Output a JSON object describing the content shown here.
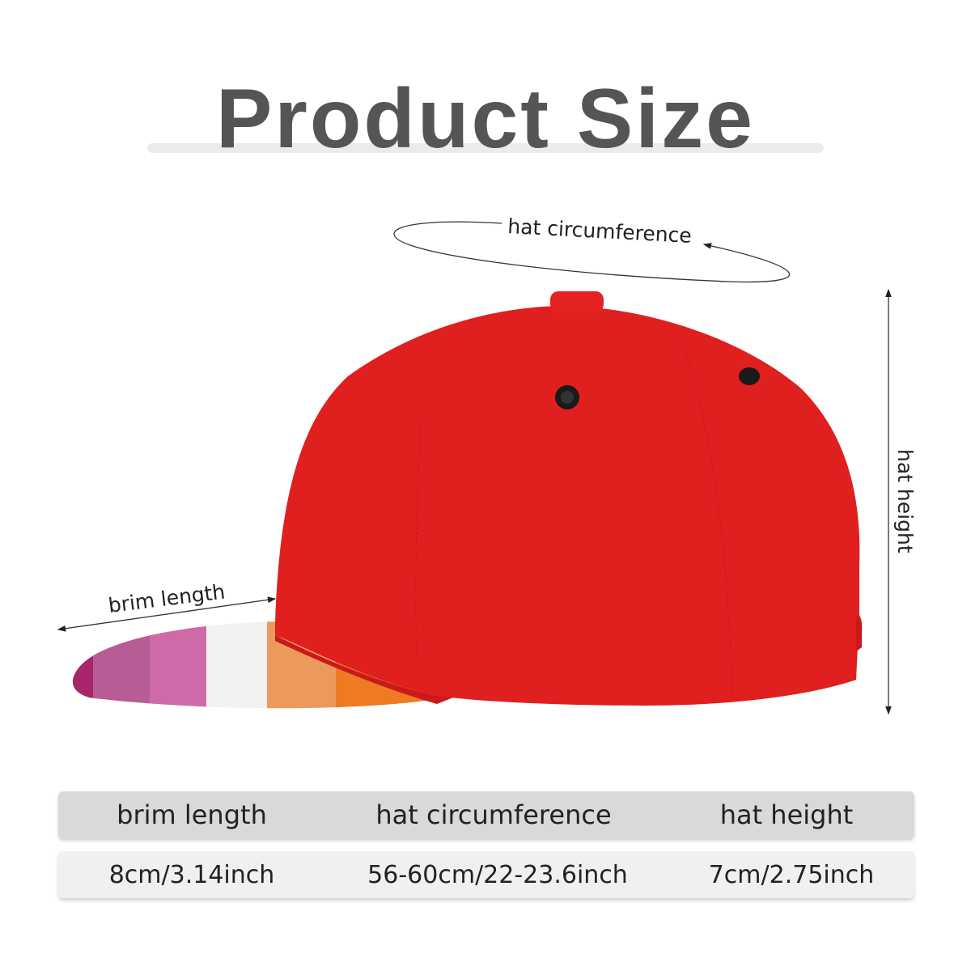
{
  "title": "Product Size",
  "annotations": {
    "circumference": "hat circumference",
    "height": "hat height",
    "brim": "brim length"
  },
  "colors": {
    "crown": "#e01f1f",
    "brim_stripes": [
      "#a8246b",
      "#b85c95",
      "#cf6aa8",
      "#f2f2f2",
      "#ec9a5c",
      "#ee7a22"
    ],
    "header_row": "#d9d9d9",
    "value_row": "#f0f0f0"
  },
  "table": {
    "headers": [
      "brim length",
      "hat circumference",
      "hat height"
    ],
    "values": [
      "8cm/3.14inch",
      "56-60cm/22-23.6inch",
      "7cm/2.75inch"
    ]
  }
}
